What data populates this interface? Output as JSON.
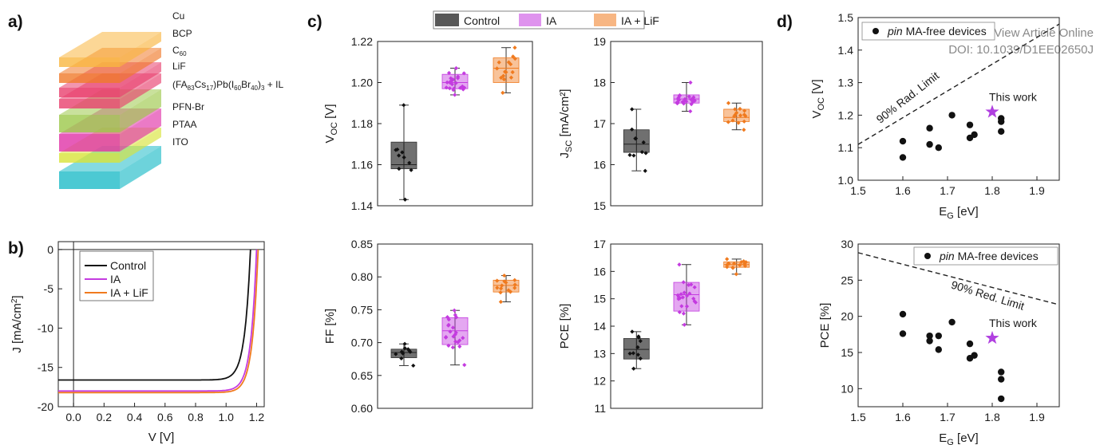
{
  "panels": {
    "a": "a)",
    "b": "b)",
    "c": "c)",
    "d": "d)"
  },
  "watermark": {
    "line1": "View Article Online",
    "line2": "DOI: 10.1039/D1EE02650J"
  },
  "stack": {
    "layers": [
      {
        "name": "Cu",
        "color": "#f9b640"
      },
      {
        "name": "BCP",
        "color": "#f07a2a"
      },
      {
        "name": "C60",
        "color": "#e8406e"
      },
      {
        "name": "LiF",
        "color": "#e8406e"
      },
      {
        "name": "(FA83Cs17)Pb(I60Br40)3 + IL",
        "color": "#9cc84a"
      },
      {
        "name": "PFN-Br",
        "color": "#e033a8"
      },
      {
        "name": "PTAA",
        "color": "#d8e33a"
      },
      {
        "name": "ITO",
        "color": "#1fbcc8"
      }
    ]
  },
  "colors": {
    "control": "#111111",
    "ia": "#c43be0",
    "ialif": "#f07a1e",
    "star": "#b040e0"
  },
  "chart_data": [
    {
      "id": "b",
      "type": "line",
      "xlabel": "V [V]",
      "ylabel": "J [mA/cm2]",
      "xlim": [
        -0.1,
        1.25
      ],
      "ylim": [
        -20,
        1
      ],
      "xticks": [
        "0.0",
        "0.2",
        "0.4",
        "0.6",
        "0.8",
        "1.0",
        "1.2"
      ],
      "yticks": [
        "0",
        "-5",
        "-10",
        "-15",
        "-20"
      ],
      "legend": "top-left",
      "series": [
        {
          "name": "Control",
          "jsc": -16.6,
          "voc": 1.16
        },
        {
          "name": "IA",
          "jsc": -18.0,
          "voc": 1.2
        },
        {
          "name": "IA + LiF",
          "jsc": -18.2,
          "voc": 1.21
        }
      ]
    },
    {
      "id": "c",
      "type": "box",
      "legend": [
        "Control",
        "IA",
        "IA + LiF"
      ],
      "subplots": [
        {
          "ylabel": "VOC [V]",
          "ylim": [
            1.14,
            1.22
          ],
          "yticks": [
            "1.14",
            "1.16",
            "1.18",
            "1.20",
            "1.22"
          ],
          "boxes": [
            {
              "min": 1.143,
              "q1": 1.158,
              "med": 1.16,
              "q3": 1.171,
              "max": 1.189
            },
            {
              "min": 1.194,
              "q1": 1.197,
              "med": 1.2,
              "q3": 1.204,
              "max": 1.207
            },
            {
              "min": 1.195,
              "q1": 1.2,
              "med": 1.207,
              "q3": 1.212,
              "max": 1.217
            }
          ]
        },
        {
          "ylabel": "JSC [mA/cm2]",
          "ylim": [
            15,
            19
          ],
          "yticks": [
            "15",
            "16",
            "17",
            "18",
            "19"
          ],
          "boxes": [
            {
              "min": 15.85,
              "q1": 16.3,
              "med": 16.5,
              "q3": 16.85,
              "max": 17.35
            },
            {
              "min": 17.3,
              "q1": 17.5,
              "med": 17.6,
              "q3": 17.7,
              "max": 18.0
            },
            {
              "min": 16.85,
              "q1": 17.05,
              "med": 17.15,
              "q3": 17.35,
              "max": 17.5
            }
          ]
        },
        {
          "ylabel": "FF [%]",
          "ylim": [
            0.6,
            0.85
          ],
          "yticks": [
            "0.60",
            "0.65",
            "0.70",
            "0.75",
            "0.80",
            "0.85"
          ],
          "boxes": [
            {
              "min": 0.665,
              "q1": 0.677,
              "med": 0.685,
              "q3": 0.69,
              "max": 0.698
            },
            {
              "min": 0.666,
              "q1": 0.697,
              "med": 0.718,
              "q3": 0.738,
              "max": 0.749
            },
            {
              "min": 0.762,
              "q1": 0.777,
              "med": 0.787,
              "q3": 0.795,
              "max": 0.802
            }
          ]
        },
        {
          "ylabel": "PCE [%]",
          "ylim": [
            11,
            17
          ],
          "yticks": [
            "11",
            "12",
            "13",
            "14",
            "15",
            "16",
            "17"
          ],
          "boxes": [
            {
              "min": 12.45,
              "q1": 12.8,
              "med": 13.15,
              "q3": 13.55,
              "max": 13.8
            },
            {
              "min": 14.05,
              "q1": 14.55,
              "med": 15.15,
              "q3": 15.6,
              "max": 16.25
            },
            {
              "min": 15.9,
              "q1": 16.15,
              "med": 16.25,
              "q3": 16.35,
              "max": 16.45
            }
          ]
        }
      ]
    },
    {
      "id": "d1",
      "type": "scatter",
      "xlabel": "EG [eV]",
      "ylabel": "VOC [V]",
      "xlim": [
        1.5,
        1.95
      ],
      "ylim": [
        1.0,
        1.5
      ],
      "xticks": [
        "1.5",
        "1.6",
        "1.7",
        "1.8",
        "1.9"
      ],
      "yticks": [
        "1.0",
        "1.1",
        "1.2",
        "1.3",
        "1.4",
        "1.5"
      ],
      "legend": "pin MA-free devices",
      "limit_label": "90% Rad. Limit",
      "limit_line": [
        [
          1.5,
          1.11
        ],
        [
          1.95,
          1.48
        ]
      ],
      "points": [
        [
          1.6,
          1.12
        ],
        [
          1.6,
          1.07
        ],
        [
          1.66,
          1.16
        ],
        [
          1.66,
          1.11
        ],
        [
          1.68,
          1.1
        ],
        [
          1.71,
          1.2
        ],
        [
          1.75,
          1.17
        ],
        [
          1.75,
          1.13
        ],
        [
          1.76,
          1.14
        ],
        [
          1.82,
          1.19
        ],
        [
          1.82,
          1.18
        ],
        [
          1.82,
          1.15
        ]
      ],
      "this_work": [
        1.8,
        1.21
      ],
      "this_work_label": "This work"
    },
    {
      "id": "d2",
      "type": "scatter",
      "xlabel": "EG [eV]",
      "ylabel": "PCE [%]",
      "xlim": [
        1.5,
        1.95
      ],
      "ylim": [
        7.5,
        30
      ],
      "xticks": [
        "1.5",
        "1.6",
        "1.7",
        "1.8",
        "1.9"
      ],
      "yticks": [
        "10",
        "15",
        "20",
        "25",
        "30"
      ],
      "legend": "pin MA-free devices",
      "limit_label": "90% Red. Limit",
      "limit_line": [
        [
          1.5,
          28.8
        ],
        [
          1.95,
          21.6
        ]
      ],
      "points": [
        [
          1.6,
          20.3
        ],
        [
          1.6,
          17.6
        ],
        [
          1.66,
          17.3
        ],
        [
          1.66,
          16.6
        ],
        [
          1.68,
          17.3
        ],
        [
          1.68,
          15.4
        ],
        [
          1.71,
          19.2
        ],
        [
          1.75,
          16.2
        ],
        [
          1.75,
          14.2
        ],
        [
          1.76,
          14.6
        ],
        [
          1.82,
          12.3
        ],
        [
          1.82,
          11.3
        ],
        [
          1.82,
          8.6
        ]
      ],
      "this_work": [
        1.8,
        17.0
      ],
      "this_work_label": "This work"
    }
  ]
}
